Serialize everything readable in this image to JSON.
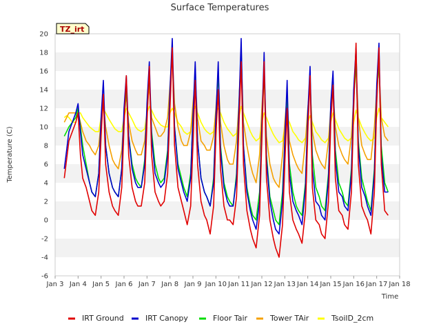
{
  "chart_data": {
    "type": "line",
    "title": "Surface Temperatures",
    "xlabel": "Time",
    "ylabel": "Temperature (C)",
    "badge": "TZ_irt",
    "xlim": [
      3,
      18
    ],
    "ylim": [
      -6,
      20
    ],
    "x_ticks": [
      {
        "value": 3,
        "label": "Jan 3"
      },
      {
        "value": 4,
        "label": "Jan 4"
      },
      {
        "value": 5,
        "label": "Jan 5"
      },
      {
        "value": 6,
        "label": "Jan 6"
      },
      {
        "value": 7,
        "label": "Jan 7"
      },
      {
        "value": 8,
        "label": "Jan 8"
      },
      {
        "value": 9,
        "label": "Jan 9"
      },
      {
        "value": 10,
        "label": "Jan 10"
      },
      {
        "value": 11,
        "label": "Jan 11"
      },
      {
        "value": 12,
        "label": "Jan 12"
      },
      {
        "value": 13,
        "label": "Jan 13"
      },
      {
        "value": 14,
        "label": "Jan 14"
      },
      {
        "value": 15,
        "label": "Jan 15"
      },
      {
        "value": 16,
        "label": "Jan 16"
      },
      {
        "value": 17,
        "label": "Jan 17"
      },
      {
        "value": 18,
        "label": "Jan 18"
      }
    ],
    "y_ticks": [
      -6,
      -4,
      -2,
      0,
      2,
      4,
      6,
      8,
      10,
      12,
      14,
      16,
      18,
      20
    ],
    "grid": "horizontal bands",
    "legend_position": "bottom",
    "series": [
      {
        "name": "IRT Ground",
        "color": "#e00000",
        "x": [
          3.4,
          3.5,
          3.6,
          3.75,
          3.9,
          4.0,
          4.1,
          4.2,
          4.35,
          4.5,
          4.6,
          4.75,
          4.9,
          5.0,
          5.1,
          5.2,
          5.35,
          5.5,
          5.6,
          5.75,
          5.9,
          6.0,
          6.1,
          6.2,
          6.35,
          6.5,
          6.6,
          6.75,
          6.9,
          7.0,
          7.1,
          7.2,
          7.35,
          7.5,
          7.6,
          7.75,
          7.9,
          8.0,
          8.1,
          8.2,
          8.35,
          8.5,
          8.6,
          8.75,
          8.9,
          9.0,
          9.1,
          9.2,
          9.35,
          9.5,
          9.6,
          9.75,
          9.9,
          10.0,
          10.1,
          10.2,
          10.35,
          10.5,
          10.6,
          10.75,
          10.9,
          11.0,
          11.1,
          11.2,
          11.35,
          11.5,
          11.6,
          11.75,
          11.9,
          12.0,
          12.1,
          12.2,
          12.35,
          12.5,
          12.6,
          12.75,
          12.9,
          13.0,
          13.1,
          13.2,
          13.35,
          13.5,
          13.6,
          13.75,
          13.9,
          14.0,
          14.1,
          14.2,
          14.35,
          14.5,
          14.6,
          14.75,
          14.9,
          15.0,
          15.1,
          15.2,
          15.35,
          15.5,
          15.6,
          15.75,
          15.9,
          16.0,
          16.1,
          16.2,
          16.35,
          16.5,
          16.6,
          16.75,
          16.9,
          17.0,
          17.1,
          17.2,
          17.35,
          17.5
        ],
        "y": [
          4.5,
          6.5,
          8.5,
          9.5,
          10.5,
          11.5,
          7.0,
          4.5,
          3.5,
          2.0,
          1.0,
          0.5,
          3.0,
          9.0,
          13.5,
          6.0,
          3.0,
          1.5,
          1.0,
          0.5,
          3.5,
          10.0,
          15.5,
          7.0,
          3.5,
          2.0,
          1.5,
          1.5,
          4.0,
          10.5,
          16.5,
          7.0,
          3.0,
          2.0,
          1.5,
          2.0,
          5.0,
          12.0,
          18.5,
          8.0,
          3.5,
          2.0,
          1.0,
          -0.5,
          1.5,
          8.0,
          15.0,
          6.0,
          2.0,
          0.5,
          0.0,
          -1.5,
          1.5,
          9.0,
          14.0,
          5.5,
          1.5,
          0.0,
          0.0,
          -0.5,
          2.5,
          10.0,
          17.0,
          6.0,
          1.0,
          -1.0,
          -2.0,
          -3.0,
          0.5,
          8.5,
          17.0,
          4.5,
          0.0,
          -2.0,
          -3.0,
          -4.0,
          -0.5,
          6.0,
          12.0,
          3.0,
          0.0,
          -1.0,
          -1.5,
          -2.5,
          1.0,
          9.5,
          15.5,
          3.5,
          0.0,
          -0.5,
          -1.5,
          -2.0,
          2.0,
          10.5,
          14.5,
          4.5,
          1.0,
          0.5,
          -0.5,
          -1.0,
          3.0,
          12.0,
          19.0,
          6.0,
          1.5,
          0.5,
          0.0,
          -1.5,
          3.0,
          12.5,
          18.5,
          6.0,
          1.0,
          0.5
        ]
      },
      {
        "name": "IRT Canopy",
        "color": "#0000cc",
        "x": [
          3.4,
          3.5,
          3.6,
          3.75,
          3.9,
          4.0,
          4.1,
          4.2,
          4.35,
          4.5,
          4.6,
          4.75,
          4.9,
          5.0,
          5.1,
          5.2,
          5.35,
          5.5,
          5.6,
          5.75,
          5.9,
          6.0,
          6.1,
          6.2,
          6.35,
          6.5,
          6.6,
          6.75,
          6.9,
          7.0,
          7.1,
          7.2,
          7.35,
          7.5,
          7.6,
          7.75,
          7.9,
          8.0,
          8.1,
          8.2,
          8.35,
          8.5,
          8.6,
          8.75,
          8.9,
          9.0,
          9.1,
          9.2,
          9.35,
          9.5,
          9.6,
          9.75,
          9.9,
          10.0,
          10.1,
          10.2,
          10.35,
          10.5,
          10.6,
          10.75,
          10.9,
          11.0,
          11.1,
          11.2,
          11.35,
          11.5,
          11.6,
          11.75,
          11.9,
          12.0,
          12.1,
          12.2,
          12.35,
          12.5,
          12.6,
          12.75,
          12.9,
          13.0,
          13.1,
          13.2,
          13.35,
          13.5,
          13.6,
          13.75,
          13.9,
          14.0,
          14.1,
          14.2,
          14.35,
          14.5,
          14.6,
          14.75,
          14.9,
          15.0,
          15.1,
          15.2,
          15.35,
          15.5,
          15.6,
          15.75,
          15.9,
          16.0,
          16.1,
          16.2,
          16.35,
          16.5,
          16.6,
          16.75,
          16.9,
          17.0,
          17.1,
          17.2,
          17.35,
          17.5
        ],
        "y": [
          5.5,
          7.5,
          9.5,
          10.5,
          11.5,
          12.5,
          9.5,
          7.0,
          5.5,
          4.0,
          3.0,
          2.5,
          5.0,
          11.0,
          15.0,
          8.0,
          5.0,
          3.5,
          3.0,
          2.5,
          5.5,
          12.0,
          15.5,
          9.0,
          5.5,
          4.0,
          3.5,
          3.5,
          6.0,
          12.5,
          17.0,
          9.0,
          5.0,
          4.0,
          3.5,
          4.0,
          7.0,
          14.0,
          19.5,
          10.0,
          5.5,
          4.0,
          3.0,
          2.0,
          4.5,
          11.0,
          17.0,
          8.5,
          4.5,
          3.0,
          2.5,
          1.5,
          4.0,
          11.0,
          17.0,
          7.5,
          3.5,
          2.0,
          1.5,
          1.5,
          4.5,
          12.0,
          19.5,
          8.0,
          3.0,
          1.0,
          0.0,
          -1.0,
          2.0,
          10.0,
          18.0,
          6.5,
          2.0,
          0.0,
          -1.0,
          -1.5,
          2.0,
          8.5,
          15.0,
          5.0,
          2.0,
          1.0,
          0.5,
          -0.5,
          3.5,
          11.5,
          16.5,
          5.5,
          2.0,
          1.5,
          0.5,
          0.0,
          4.5,
          12.5,
          16.0,
          6.5,
          3.0,
          2.5,
          1.5,
          1.0,
          5.0,
          14.0,
          18.5,
          8.0,
          3.5,
          2.5,
          1.5,
          0.5,
          5.0,
          14.5,
          19.0,
          7.0,
          3.0,
          3.0
        ]
      },
      {
        "name": "Floor Tair",
        "color": "#00dd00",
        "x": [
          3.4,
          3.5,
          3.6,
          3.75,
          3.9,
          4.0,
          4.1,
          4.2,
          4.35,
          4.5,
          4.6,
          4.75,
          4.9,
          5.0,
          5.1,
          5.2,
          5.35,
          5.5,
          5.6,
          5.75,
          5.9,
          6.0,
          6.1,
          6.2,
          6.35,
          6.5,
          6.6,
          6.75,
          6.9,
          7.0,
          7.1,
          7.2,
          7.35,
          7.5,
          7.6,
          7.75,
          7.9,
          8.0,
          8.1,
          8.2,
          8.35,
          8.5,
          8.6,
          8.75,
          8.9,
          9.0,
          9.1,
          9.2,
          9.35,
          9.5,
          9.6,
          9.75,
          9.9,
          10.0,
          10.1,
          10.2,
          10.35,
          10.5,
          10.6,
          10.75,
          10.9,
          11.0,
          11.1,
          11.2,
          11.35,
          11.5,
          11.6,
          11.75,
          11.9,
          12.0,
          12.1,
          12.2,
          12.35,
          12.5,
          12.6,
          12.75,
          12.9,
          13.0,
          13.1,
          13.2,
          13.35,
          13.5,
          13.6,
          13.75,
          13.9,
          14.0,
          14.1,
          14.2,
          14.35,
          14.5,
          14.6,
          14.75,
          14.9,
          15.0,
          15.1,
          15.2,
          15.35,
          15.5,
          15.6,
          15.75,
          15.9,
          16.0,
          16.1,
          16.2,
          16.35,
          16.5,
          16.6,
          16.75,
          16.9,
          17.0,
          17.1,
          17.2,
          17.35,
          17.5
        ],
        "y": [
          9.0,
          9.5,
          10.0,
          10.5,
          11.0,
          12.0,
          10.0,
          8.0,
          6.0,
          4.0,
          3.0,
          2.5,
          5.0,
          10.5,
          13.5,
          8.0,
          5.0,
          3.5,
          3.0,
          2.5,
          5.5,
          11.0,
          14.0,
          9.0,
          6.0,
          4.5,
          4.0,
          3.5,
          6.5,
          12.0,
          15.5,
          9.5,
          6.0,
          4.5,
          4.0,
          4.5,
          7.5,
          13.5,
          18.0,
          10.0,
          6.0,
          4.5,
          3.5,
          2.5,
          5.0,
          11.0,
          15.5,
          8.5,
          4.5,
          3.0,
          2.5,
          1.5,
          4.5,
          11.0,
          16.0,
          8.0,
          4.0,
          2.5,
          2.0,
          1.5,
          5.0,
          12.0,
          18.5,
          8.0,
          3.5,
          1.5,
          0.5,
          0.0,
          3.0,
          10.0,
          16.0,
          7.0,
          2.5,
          1.0,
          0.0,
          -0.5,
          3.0,
          8.5,
          13.5,
          6.0,
          3.0,
          1.5,
          1.0,
          0.5,
          4.0,
          11.0,
          15.5,
          7.0,
          3.5,
          2.5,
          1.5,
          1.0,
          5.0,
          12.0,
          15.0,
          7.5,
          4.0,
          3.0,
          2.0,
          1.5,
          5.5,
          13.0,
          17.0,
          8.5,
          4.5,
          3.0,
          2.0,
          1.0,
          5.5,
          13.5,
          17.0,
          8.0,
          4.0,
          3.0
        ]
      },
      {
        "name": "Tower TAir",
        "color": "#f5a000",
        "x": [
          3.4,
          3.5,
          3.6,
          3.75,
          3.9,
          4.0,
          4.1,
          4.2,
          4.35,
          4.5,
          4.6,
          4.75,
          4.9,
          5.0,
          5.1,
          5.2,
          5.35,
          5.5,
          5.6,
          5.75,
          5.9,
          6.0,
          6.1,
          6.2,
          6.35,
          6.5,
          6.6,
          6.75,
          6.9,
          7.0,
          7.1,
          7.2,
          7.35,
          7.5,
          7.6,
          7.75,
          7.9,
          8.0,
          8.1,
          8.2,
          8.35,
          8.5,
          8.6,
          8.75,
          8.9,
          9.0,
          9.1,
          9.2,
          9.35,
          9.5,
          9.6,
          9.75,
          9.9,
          10.0,
          10.1,
          10.2,
          10.35,
          10.5,
          10.6,
          10.75,
          10.9,
          11.0,
          11.1,
          11.2,
          11.35,
          11.5,
          11.6,
          11.75,
          11.9,
          12.0,
          12.1,
          12.2,
          12.35,
          12.5,
          12.6,
          12.75,
          12.9,
          13.0,
          13.1,
          13.2,
          13.35,
          13.5,
          13.6,
          13.75,
          13.9,
          14.0,
          14.1,
          14.2,
          14.35,
          14.5,
          14.6,
          14.75,
          14.9,
          15.0,
          15.1,
          15.2,
          15.35,
          15.5,
          15.6,
          15.75,
          15.9,
          16.0,
          16.1,
          16.2,
          16.35,
          16.5,
          16.6,
          16.75,
          16.9,
          17.0,
          17.1,
          17.2,
          17.35,
          17.5
        ],
        "y": [
          10.5,
          11.0,
          11.5,
          11.5,
          11.5,
          11.5,
          10.5,
          9.5,
          8.5,
          8.0,
          7.5,
          7.0,
          8.0,
          10.5,
          12.5,
          10.0,
          8.0,
          6.5,
          6.0,
          5.5,
          7.5,
          11.0,
          13.5,
          10.5,
          8.5,
          7.5,
          7.0,
          7.0,
          8.5,
          11.5,
          14.5,
          11.0,
          10.0,
          9.0,
          9.0,
          9.5,
          11.0,
          14.5,
          18.0,
          12.5,
          10.0,
          8.5,
          8.0,
          8.0,
          9.5,
          12.5,
          15.0,
          11.0,
          8.5,
          8.0,
          7.5,
          7.5,
          9.0,
          12.0,
          15.5,
          10.5,
          8.0,
          6.5,
          6.0,
          6.0,
          8.5,
          12.5,
          18.0,
          10.5,
          8.0,
          6.0,
          5.0,
          4.0,
          7.0,
          12.0,
          16.0,
          9.0,
          6.0,
          4.5,
          4.0,
          3.5,
          7.0,
          10.5,
          13.5,
          8.5,
          7.0,
          6.0,
          5.5,
          5.0,
          8.5,
          12.0,
          14.5,
          9.5,
          7.5,
          6.5,
          6.0,
          5.5,
          8.5,
          12.0,
          14.0,
          10.0,
          8.0,
          7.0,
          6.5,
          6.0,
          9.0,
          13.0,
          16.5,
          11.0,
          8.0,
          7.0,
          6.5,
          6.5,
          10.0,
          14.0,
          16.5,
          11.0,
          9.0,
          8.5
        ]
      },
      {
        "name": "TsoilD_2cm",
        "color": "#ffff00",
        "x": [
          3.4,
          3.5,
          3.6,
          3.75,
          3.9,
          4.0,
          4.1,
          4.2,
          4.35,
          4.5,
          4.6,
          4.75,
          4.9,
          5.0,
          5.1,
          5.2,
          5.35,
          5.5,
          5.6,
          5.75,
          5.9,
          6.0,
          6.1,
          6.2,
          6.35,
          6.5,
          6.6,
          6.75,
          6.9,
          7.0,
          7.1,
          7.2,
          7.35,
          7.5,
          7.6,
          7.75,
          7.9,
          8.0,
          8.1,
          8.2,
          8.35,
          8.5,
          8.6,
          8.75,
          8.9,
          9.0,
          9.1,
          9.2,
          9.35,
          9.5,
          9.6,
          9.75,
          9.9,
          10.0,
          10.1,
          10.2,
          10.35,
          10.5,
          10.6,
          10.75,
          10.9,
          11.0,
          11.1,
          11.2,
          11.35,
          11.5,
          11.6,
          11.75,
          11.9,
          12.0,
          12.1,
          12.2,
          12.35,
          12.5,
          12.6,
          12.75,
          12.9,
          13.0,
          13.1,
          13.2,
          13.35,
          13.5,
          13.6,
          13.75,
          13.9,
          14.0,
          14.1,
          14.2,
          14.35,
          14.5,
          14.6,
          14.75,
          14.9,
          15.0,
          15.1,
          15.2,
          15.35,
          15.5,
          15.6,
          15.75,
          15.9,
          16.0,
          16.1,
          16.2,
          16.35,
          16.5,
          16.6,
          16.75,
          16.9,
          17.0,
          17.1,
          17.2,
          17.35,
          17.5
        ],
        "y": [
          11.0,
          11.2,
          11.0,
          10.5,
          10.5,
          11.5,
          11.5,
          11.0,
          10.5,
          10.0,
          9.8,
          9.5,
          9.5,
          11.0,
          12.0,
          11.5,
          10.8,
          10.2,
          9.8,
          9.5,
          9.5,
          11.0,
          12.0,
          11.5,
          10.8,
          10.0,
          9.7,
          9.5,
          9.8,
          11.5,
          12.2,
          11.8,
          11.0,
          10.5,
          10.2,
          10.0,
          10.0,
          11.5,
          12.0,
          11.5,
          10.5,
          10.0,
          9.5,
          9.2,
          9.5,
          11.5,
          12.2,
          11.5,
          10.5,
          9.8,
          9.5,
          9.2,
          9.5,
          11.5,
          12.0,
          11.5,
          10.5,
          9.8,
          9.5,
          9.0,
          9.3,
          11.0,
          12.2,
          11.5,
          10.5,
          9.5,
          9.0,
          8.5,
          8.8,
          10.5,
          11.5,
          11.0,
          10.0,
          9.2,
          8.8,
          8.3,
          8.5,
          10.0,
          11.0,
          10.5,
          9.5,
          9.0,
          8.6,
          8.3,
          8.8,
          10.5,
          11.2,
          10.5,
          9.5,
          9.0,
          8.6,
          8.3,
          8.8,
          10.5,
          11.5,
          10.8,
          9.8,
          9.2,
          8.8,
          8.5,
          8.8,
          10.5,
          11.8,
          11.0,
          10.0,
          9.3,
          8.9,
          8.5,
          8.8,
          11.0,
          12.0,
          11.0,
          10.5,
          10.0
        ]
      }
    ]
  }
}
